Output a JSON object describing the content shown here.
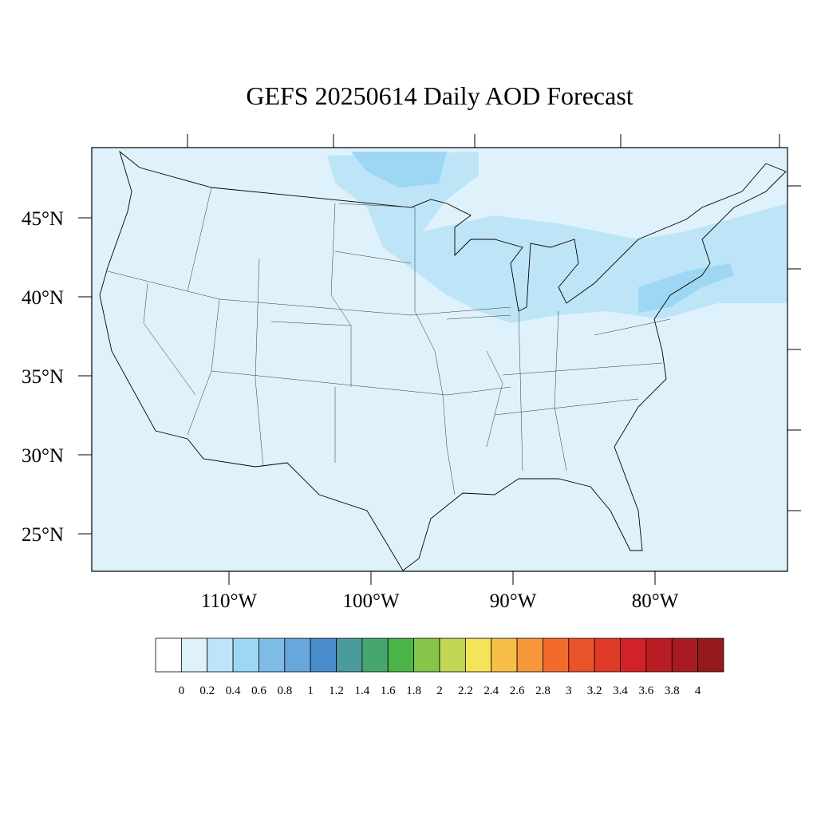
{
  "title": "GEFS 20250614 Daily AOD Forecast",
  "map": {
    "lat_ticks": [
      {
        "value": 45,
        "label": "45°N"
      },
      {
        "value": 40,
        "label": "40°N"
      },
      {
        "value": 35,
        "label": "35°N"
      },
      {
        "value": 30,
        "label": "30°N"
      },
      {
        "value": 25,
        "label": "25°N"
      }
    ],
    "lon_ticks": [
      {
        "value": -110,
        "label": "110°W"
      },
      {
        "value": -100,
        "label": "100°W"
      },
      {
        "value": -90,
        "label": "90°W"
      },
      {
        "value": -80,
        "label": "80°W"
      }
    ]
  },
  "colorbar": {
    "levels": [
      0,
      0.2,
      0.4,
      0.6,
      0.8,
      1,
      1.2,
      1.4,
      1.6,
      1.8,
      2,
      2.2,
      2.4,
      2.6,
      2.8,
      3,
      3.2,
      3.4,
      3.6,
      3.8,
      4
    ],
    "colors": [
      "#ffffff",
      "#dff2fb",
      "#bde5f7",
      "#9dd7f3",
      "#80bde6",
      "#68a7dc",
      "#4a8dcc",
      "#4a9a9e",
      "#47a670",
      "#4bb54a",
      "#86c54b",
      "#c3d655",
      "#f4e45a",
      "#f7be48",
      "#f6973b",
      "#f26b2c",
      "#ea522a",
      "#de3a27",
      "#d22127",
      "#bb1d25",
      "#a81b23",
      "#941a1d"
    ]
  }
}
